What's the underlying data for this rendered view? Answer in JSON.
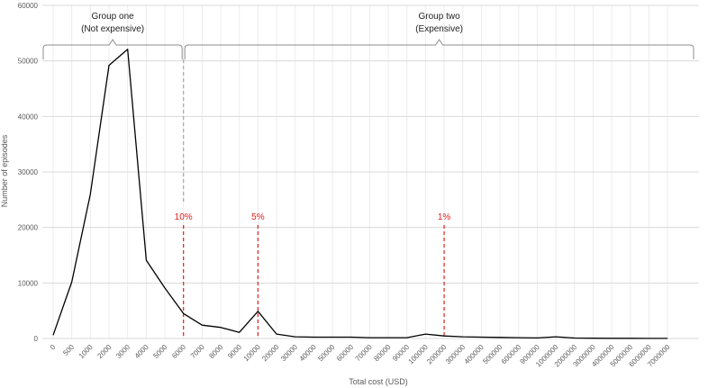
{
  "chart_data": {
    "type": "line",
    "title": "",
    "xlabel": "Total cost (USD)",
    "ylabel": "Number of episodes",
    "ylim": [
      0,
      60000
    ],
    "yticks": [
      0,
      10000,
      20000,
      30000,
      40000,
      50000,
      60000
    ],
    "grid": {
      "horizontal": true,
      "vertical": true
    },
    "categories": [
      "0",
      "500",
      "1000",
      "2000",
      "3000",
      "4000",
      "5000",
      "6000",
      "7000",
      "8000",
      "9000",
      "10000",
      "20000",
      "30000",
      "40000",
      "50000",
      "60000",
      "70000",
      "80000",
      "90000",
      "100000",
      "200000",
      "300000",
      "400000",
      "500000",
      "600000",
      "900000",
      "1000000",
      "2000000",
      "3000000",
      "4000000",
      "5000000",
      "6000000",
      "7000000"
    ],
    "series": [
      {
        "values": [
          600,
          10200,
          26000,
          49200,
          52100,
          14100,
          9100,
          4500,
          2400,
          2000,
          1100,
          4900,
          800,
          300,
          250,
          250,
          250,
          150,
          150,
          150,
          800,
          450,
          300,
          250,
          200,
          150,
          100,
          300,
          80,
          50,
          40,
          30,
          20,
          10
        ],
        "color": "#000000"
      }
    ],
    "groups": [
      {
        "label_line1": "Group one",
        "label_line2": "(Not expensive)",
        "from_category": "0",
        "to_category": "6000"
      },
      {
        "label_line1": "Group two",
        "label_line2": "(Expensive)",
        "from_category": "6000",
        "to_category": "7000000"
      }
    ],
    "markers": [
      {
        "label": "10%",
        "category": "6000"
      },
      {
        "label": "5%",
        "category": "10000"
      },
      {
        "label": "1%",
        "category": "200000"
      }
    ],
    "colors": {
      "line": "#000000",
      "marker": "#e0201b",
      "divider": "#a6a6a6",
      "grid": "#d9d9d9",
      "bracket": "#8c8c8c"
    }
  }
}
